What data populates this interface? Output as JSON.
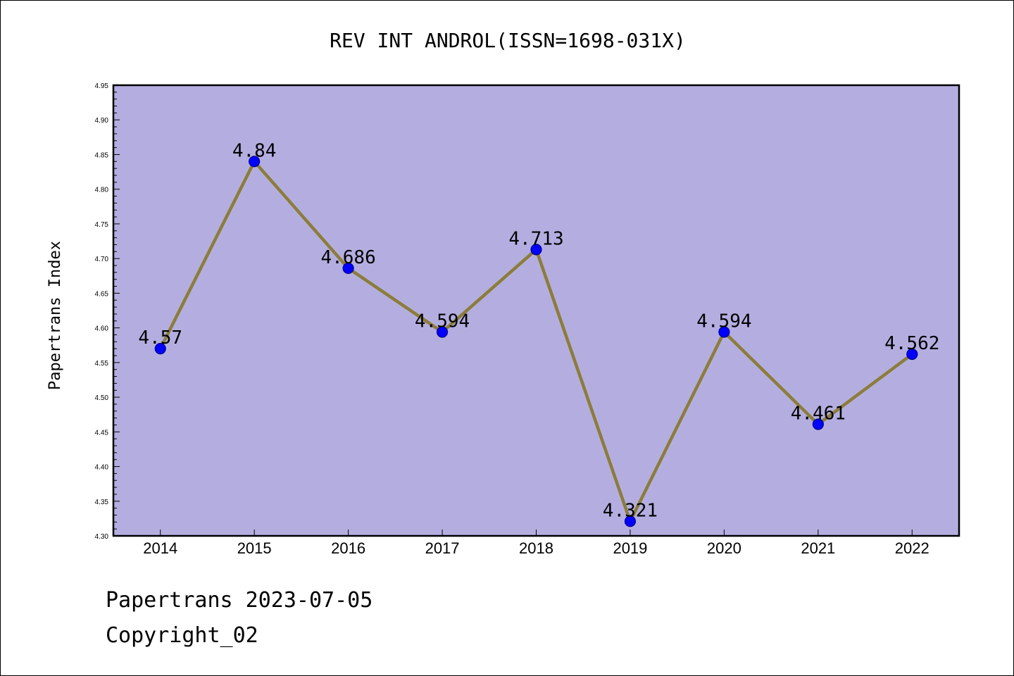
{
  "chart_data": {
    "type": "line",
    "title": "REV INT ANDROL(ISSN=1698-031X)",
    "xlabel": "",
    "ylabel": "Papertrans Index",
    "categories": [
      "2014",
      "2015",
      "2016",
      "2017",
      "2018",
      "2019",
      "2020",
      "2021",
      "2022"
    ],
    "series": [
      {
        "values": [
          4.57,
          4.84,
          4.686,
          4.594,
          4.713,
          4.321,
          4.594,
          4.461,
          4.562
        ],
        "data_labels": [
          "4.57",
          "4.84",
          "4.686",
          "4.594",
          "4.713",
          "4.321",
          "4.594",
          "4.461",
          "4.562"
        ]
      }
    ],
    "ylim": [
      4.3,
      4.95
    ],
    "y_ticks": [
      "4.30",
      "4.35",
      "4.40",
      "4.45",
      "4.50",
      "4.55",
      "4.60",
      "4.65",
      "4.70",
      "4.75",
      "4.80",
      "4.85",
      "4.90",
      "4.95"
    ],
    "grid": false,
    "legend": "none",
    "colors": {
      "plot_background": "#b4aee0",
      "line": "#8b7d3a",
      "marker_fill": "#0000ff",
      "marker_edge": "#00008b",
      "axes": "#000000"
    }
  },
  "footer": {
    "date_text": "Papertrans 2023-07-05",
    "copyright_text": "Copyright_02"
  }
}
